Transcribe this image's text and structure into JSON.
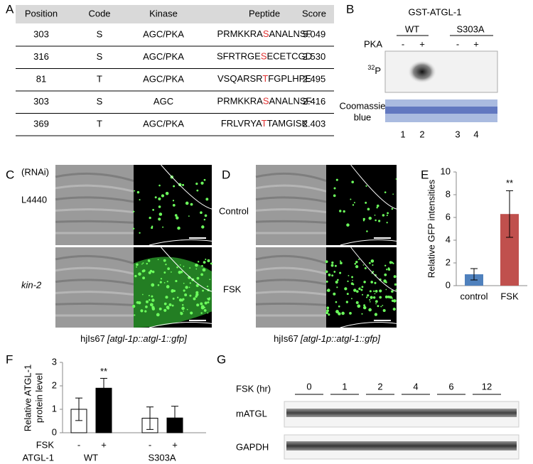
{
  "panels": {
    "a": "A",
    "b": "B",
    "c": "C",
    "d": "D",
    "e": "E",
    "f": "F",
    "g": "G"
  },
  "table": {
    "header": [
      "Position",
      "Code",
      "Kinase",
      "Peptide",
      "Score"
    ],
    "rows": [
      [
        "303",
        "S",
        "AGC/PKA",
        {
          "before": "PRMKKRA",
          "site": "S",
          "after": "ANALNSF"
        },
        "5.049"
      ],
      [
        "316",
        "S",
        "AGC/PKA",
        {
          "before": "SFRTRGE",
          "site": "S",
          "after": "ECETCGD"
        },
        "2.530"
      ],
      [
        "81",
        "T",
        "AGC/PKA",
        {
          "before": "VSQARSR",
          "site": "T",
          "after": "FGPLHPE"
        },
        "2.495"
      ],
      [
        "303",
        "S",
        "AGC",
        {
          "before": "PRMKKRA",
          "site": "S",
          "after": "ANALNSF"
        },
        "2.416"
      ],
      [
        "369",
        "T",
        "AGC/PKA",
        {
          "before": "FRLVRYA",
          "site": "T",
          "after": "TAMGISK"
        },
        "2.403"
      ]
    ]
  },
  "blot_b": {
    "title": "GST-ATGL-1",
    "groups": [
      "WT",
      "S303A"
    ],
    "treatment": "PKA",
    "signs": [
      "-",
      "+",
      "-",
      "+"
    ],
    "autoradiograph": {
      "mass": "32",
      "element": "P"
    },
    "stain": [
      "Coomassie",
      "blue"
    ],
    "lanes": [
      "1",
      "2",
      "3",
      "4"
    ]
  },
  "images_c": {
    "header": "(RNAi)",
    "rows": [
      "L4440",
      "kin-2"
    ],
    "caption": {
      "strain": "hjIs67",
      "transgene": "[atgl-1p::atgl-1::gfp]"
    }
  },
  "images_d": {
    "rows": [
      "Control",
      "FSK"
    ],
    "caption": {
      "strain": "hjIs67",
      "transgene": "[atgl-1p::atgl-1::gfp]"
    }
  },
  "blot_g": {
    "treatment": "FSK (hr)",
    "times": [
      "0",
      "1",
      "2",
      "4",
      "6",
      "12"
    ],
    "bands": [
      "mATGL",
      "GAPDH"
    ]
  },
  "chart_data": [
    {
      "type": "bar",
      "ylabel": "Relative GFP intensities",
      "categories": [
        "control",
        "FSK"
      ],
      "values": [
        1.0,
        6.3
      ],
      "errors": [
        0.5,
        2.05
      ],
      "colors": [
        "#4f81bd",
        "#c0504d"
      ],
      "ylim": [
        0,
        10
      ],
      "yticks": [
        0,
        2,
        4,
        6,
        8,
        10
      ],
      "annotation": "**"
    },
    {
      "type": "bar",
      "ylabel": [
        "Relative ATGL-1",
        "protein level"
      ],
      "categories_label": "FSK",
      "categories": [
        "-",
        "+",
        "-",
        "+"
      ],
      "groups_label": "ATGL-1",
      "groups": [
        "WT",
        "S303A"
      ],
      "values": [
        1.0,
        1.9,
        0.62,
        0.63
      ],
      "errors": [
        0.48,
        0.42,
        0.48,
        0.5
      ],
      "colors": [
        "#ffffff",
        "#000000",
        "#ffffff",
        "#000000"
      ],
      "ylim": [
        0,
        3
      ],
      "yticks": [
        0,
        1,
        2,
        3
      ],
      "annotation": "**"
    }
  ]
}
